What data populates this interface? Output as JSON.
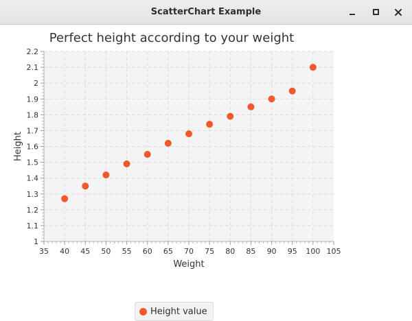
{
  "window": {
    "title": "ScatterChart Example",
    "controls": [
      "minimize",
      "maximize",
      "close"
    ]
  },
  "colors": {
    "series": "#f1582c",
    "plot_background": "#f4f4f4",
    "grid": "#dcdcdc",
    "text": "#333333"
  },
  "chart_data": {
    "type": "scatter",
    "title": "Perfect height according to your weight",
    "xlabel": "Weight",
    "ylabel": "Height",
    "xlim": [
      35,
      105
    ],
    "ylim": [
      1,
      2.2
    ],
    "xticks": [
      35,
      40,
      45,
      50,
      55,
      60,
      65,
      70,
      75,
      80,
      85,
      90,
      95,
      100,
      105
    ],
    "yticks": [
      1,
      1.1,
      1.2,
      1.3,
      1.4,
      1.5,
      1.6,
      1.7,
      1.8,
      1.9,
      2,
      2.1,
      2.2
    ],
    "xtick_labels": [
      "35",
      "40",
      "45",
      "50",
      "55",
      "60",
      "65",
      "70",
      "75",
      "80",
      "85",
      "90",
      "95",
      "100",
      "105"
    ],
    "ytick_labels": [
      "1",
      "1.1",
      "1.2",
      "1.3",
      "1.4",
      "1.5",
      "1.6",
      "1.7",
      "1.8",
      "1.9",
      "2",
      "2.1",
      "2.2"
    ],
    "grid": true,
    "legend": "bottom-center",
    "series": [
      {
        "name": "Height value",
        "x": [
          40,
          45,
          50,
          55,
          60,
          65,
          70,
          75,
          80,
          85,
          90,
          95,
          100
        ],
        "y": [
          1.27,
          1.35,
          1.42,
          1.49,
          1.55,
          1.62,
          1.68,
          1.74,
          1.79,
          1.85,
          1.9,
          1.95,
          2.1
        ]
      }
    ]
  }
}
